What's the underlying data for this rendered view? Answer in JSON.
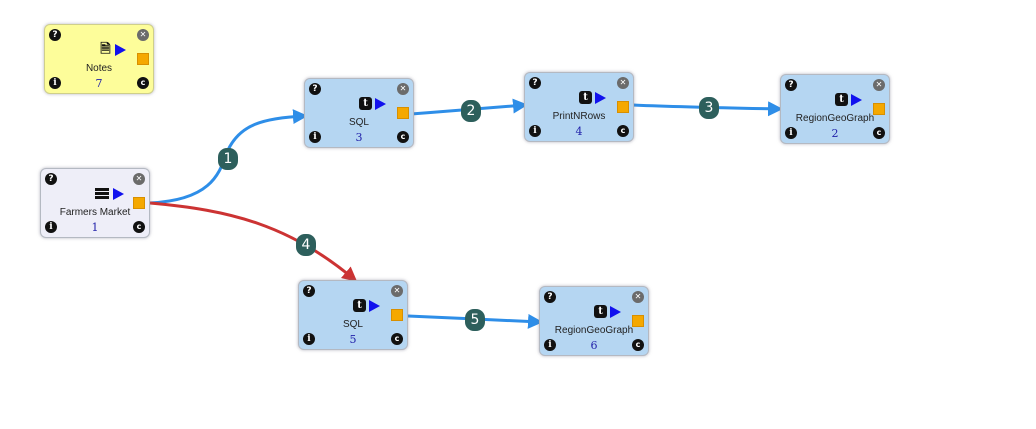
{
  "nodes": [
    {
      "key": "notes",
      "label": "Notes",
      "id": "7",
      "icon": "document-icon"
    },
    {
      "key": "farmers",
      "label": "Farmers Market",
      "id": "1",
      "icon": "list-icon"
    },
    {
      "key": "sql3",
      "label": "SQL",
      "id": "3",
      "icon": "table-t-icon"
    },
    {
      "key": "print4",
      "label": "PrintNRows",
      "id": "4",
      "icon": "table-t-icon"
    },
    {
      "key": "rgg2",
      "label": "RegionGeoGraph",
      "id": "2",
      "icon": "table-t-icon"
    },
    {
      "key": "sql5",
      "label": "SQL",
      "id": "5",
      "icon": "table-t-icon"
    },
    {
      "key": "rgg6",
      "label": "RegionGeoGraph",
      "id": "6",
      "icon": "table-t-icon"
    }
  ],
  "edges": [
    {
      "label": "1",
      "from": "farmers",
      "to": "sql3",
      "color": "#2e8ee8"
    },
    {
      "label": "2",
      "from": "sql3",
      "to": "print4",
      "color": "#2e8ee8"
    },
    {
      "label": "3",
      "from": "print4",
      "to": "rgg2",
      "color": "#2e8ee8"
    },
    {
      "label": "4",
      "from": "farmers",
      "to": "sql5",
      "color": "#cc3333"
    },
    {
      "label": "5",
      "from": "sql5",
      "to": "rgg6",
      "color": "#2e8ee8"
    }
  ],
  "glyphs": {
    "help": "?",
    "info": "i",
    "close": "✕",
    "copy": "c",
    "table": "t",
    "doc": "🗎"
  }
}
